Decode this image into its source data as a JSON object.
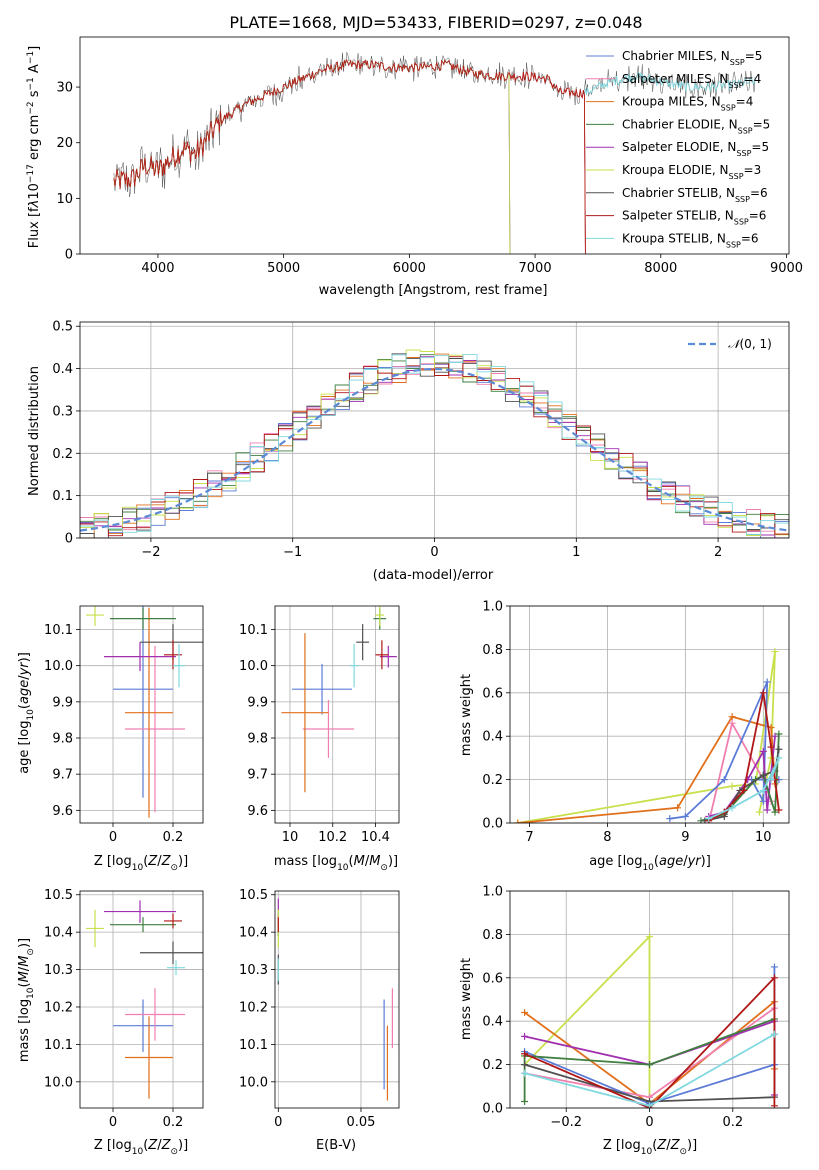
{
  "figure_title": "PLATE=1668, MJD=53433, FIBERID=0297, z=0.048",
  "chart_data": [
    {
      "id": "spectrum",
      "type": "line",
      "xlabel": "wavelength [Angstrom, rest frame]",
      "ylabel": "Flux [f_λ10^-17 erg cm^-2 s^-1 A^-1]",
      "xlim": [
        3380,
        9020
      ],
      "ylim": [
        0,
        39
      ],
      "xticks": [
        4000,
        5000,
        6000,
        7000,
        8000,
        9000
      ],
      "yticks": [
        0,
        10,
        20,
        30
      ],
      "grid": false,
      "legend": "top-right",
      "continuum": [
        [
          3650,
          13
        ],
        [
          3800,
          13.5
        ],
        [
          3900,
          16
        ],
        [
          4000,
          15
        ],
        [
          4100,
          17
        ],
        [
          4200,
          19
        ],
        [
          4300,
          18
        ],
        [
          4400,
          21
        ],
        [
          4500,
          24
        ],
        [
          4700,
          27
        ],
        [
          4900,
          29
        ],
        [
          5100,
          31
        ],
        [
          5300,
          33
        ],
        [
          5500,
          34
        ],
        [
          5700,
          34
        ],
        [
          5900,
          33.5
        ],
        [
          6100,
          33.5
        ],
        [
          6300,
          34
        ],
        [
          6500,
          32.5
        ],
        [
          6700,
          32
        ],
        [
          6900,
          32
        ],
        [
          7100,
          31.5
        ],
        [
          7200,
          29
        ],
        [
          7400,
          29
        ],
        [
          7600,
          31
        ],
        [
          7800,
          32
        ],
        [
          8000,
          31
        ],
        [
          8200,
          30
        ],
        [
          8400,
          30
        ],
        [
          8600,
          30.5
        ],
        [
          8750,
          31
        ]
      ],
      "series": [
        {
          "name": "Chabrier MILES, N_SSP=5",
          "color": "#5b7bd6",
          "x_end": 7400
        },
        {
          "name": "Salpeter MILES, N_SSP=4",
          "color": "#f07fb0",
          "x_end": 7400
        },
        {
          "name": "Kroupa MILES, N_SSP=4",
          "color": "#e0701c",
          "x_end": 7400
        },
        {
          "name": "Chabrier ELODIE, N_SSP=5",
          "color": "#3f7f3f",
          "x_end": 6800
        },
        {
          "name": "Salpeter ELODIE, N_SSP=5",
          "color": "#a030b0",
          "x_end": 6800
        },
        {
          "name": "Kroupa ELODIE, N_SSP=3",
          "color": "#c8e04c",
          "x_end": 6800
        },
        {
          "name": "Chabrier STELIB, N_SSP=6",
          "color": "#505050",
          "x_end": 8750
        },
        {
          "name": "Salpeter STELIB, N_SSP=6",
          "color": "#b01818",
          "x_end": 7400
        },
        {
          "name": "Kroupa STELIB, N_SSP=6",
          "color": "#80d8e0",
          "x_end": 8750
        }
      ]
    },
    {
      "id": "residuals",
      "type": "bar",
      "xlabel": "(data-model)/error",
      "ylabel": "Normed distribution",
      "xlim": [
        -2.5,
        2.5
      ],
      "ylim": [
        0,
        0.51
      ],
      "xticks": [
        -2,
        -1,
        0,
        1,
        2
      ],
      "yticks": [
        0.0,
        0.1,
        0.2,
        0.3,
        0.4,
        0.5
      ],
      "grid": true,
      "legend": "top-right",
      "bin_width": 0.1,
      "reference_curve": {
        "name": "N(0,1)",
        "color": "#5b8ad6",
        "mean": 0,
        "sigma": 1
      }
    },
    {
      "id": "age_vs_Z",
      "type": "scatter",
      "xlabel": "Z [log10(Z/Z_sun)]",
      "ylabel": "age [log10(age/yr)]",
      "xlim": [
        -0.11,
        0.3
      ],
      "ylim": [
        9.565,
        10.165
      ],
      "xticks": [
        0.0,
        0.2
      ],
      "yticks": [
        9.6,
        9.7,
        9.8,
        9.9,
        10.0,
        10.1
      ],
      "grid": true,
      "points": [
        {
          "x": 0.1,
          "y": 9.935,
          "xerr": 0.1,
          "yerr": 0.3,
          "color": "#5b7bd6"
        },
        {
          "x": 0.14,
          "y": 9.825,
          "xerr": 0.1,
          "yerr": 0.23,
          "color": "#f07fb0"
        },
        {
          "x": 0.12,
          "y": 9.87,
          "xerr": 0.08,
          "yerr": 0.29,
          "color": "#e0701c"
        },
        {
          "x": 0.1,
          "y": 10.13,
          "xerr": 0.11,
          "yerr": 0.03,
          "color": "#3f7f3f"
        },
        {
          "x": 0.09,
          "y": 10.025,
          "xerr": 0.12,
          "yerr": 0.04,
          "color": "#a030b0"
        },
        {
          "x": -0.06,
          "y": 10.14,
          "xerr": 0.03,
          "yerr": 0.03,
          "color": "#c8e04c"
        },
        {
          "x": 0.2,
          "y": 10.065,
          "xerr": 0.11,
          "yerr": 0.05,
          "color": "#505050"
        },
        {
          "x": 0.2,
          "y": 10.03,
          "xerr": 0.03,
          "yerr": 0.04,
          "color": "#b01818"
        },
        {
          "x": 0.22,
          "y": 10.0,
          "xerr": 0.02,
          "yerr": 0.06,
          "color": "#80d8e0"
        }
      ]
    },
    {
      "id": "age_vs_mass",
      "type": "scatter",
      "xlabel": "mass [log10(M/M_sun)]",
      "ylabel": "",
      "xlim": [
        9.93,
        10.51
      ],
      "ylim": [
        9.565,
        10.165
      ],
      "xticks": [
        10.0,
        10.2,
        10.4
      ],
      "yticks": [
        9.6,
        9.7,
        9.8,
        9.9,
        10.0,
        10.1
      ],
      "grid": true,
      "points": [
        {
          "x": 10.15,
          "y": 9.935,
          "xerr": 0.14,
          "yerr": 0.07,
          "color": "#5b7bd6"
        },
        {
          "x": 10.18,
          "y": 9.825,
          "xerr": 0.12,
          "yerr": 0.08,
          "color": "#f07fb0"
        },
        {
          "x": 10.07,
          "y": 9.87,
          "xerr": 0.11,
          "yerr": 0.22,
          "color": "#e0701c"
        },
        {
          "x": 10.42,
          "y": 10.13,
          "xerr": 0.03,
          "yerr": 0.03,
          "color": "#3f7f3f"
        },
        {
          "x": 10.46,
          "y": 10.025,
          "xerr": 0.04,
          "yerr": 0.03,
          "color": "#a030b0"
        },
        {
          "x": 10.42,
          "y": 10.14,
          "xerr": 0.02,
          "yerr": 0.03,
          "color": "#c8e04c"
        },
        {
          "x": 10.34,
          "y": 10.065,
          "xerr": 0.03,
          "yerr": 0.05,
          "color": "#505050"
        },
        {
          "x": 10.43,
          "y": 10.03,
          "xerr": 0.03,
          "yerr": 0.04,
          "color": "#b01818"
        },
        {
          "x": 10.3,
          "y": 10.0,
          "xerr": 0.02,
          "yerr": 0.06,
          "color": "#80d8e0"
        }
      ]
    },
    {
      "id": "weight_vs_age",
      "type": "line",
      "xlabel": "age [log10(age/yr)]",
      "ylabel": "mass weight",
      "xlim": [
        6.75,
        10.33
      ],
      "ylim": [
        0,
        1.0
      ],
      "xticks": [
        7,
        8,
        9,
        10
      ],
      "yticks": [
        0.0,
        0.2,
        0.4,
        0.6,
        0.8,
        1.0
      ],
      "grid": true,
      "series": [
        {
          "color": "#c8e04c",
          "x": [
            6.85,
            9.6,
            9.9,
            10.15,
            10.1,
            9.95
          ],
          "y": [
            0.0,
            0.17,
            0.18,
            0.79,
            0.3,
            0.05
          ]
        },
        {
          "color": "#e0701c",
          "x": [
            6.85,
            8.9,
            9.6,
            10.1,
            10.15
          ],
          "y": [
            0.0,
            0.07,
            0.49,
            0.44,
            0.18
          ]
        },
        {
          "color": "#f07fb0",
          "x": [
            9.3,
            9.6,
            10.0,
            10.1
          ],
          "y": [
            0.0,
            0.46,
            0.2,
            0.1
          ]
        },
        {
          "color": "#5b7bd6",
          "x": [
            8.8,
            9.0,
            9.5,
            10.05,
            10.0,
            9.85,
            10.2
          ],
          "y": [
            0.02,
            0.03,
            0.2,
            0.65,
            0.1,
            0.2,
            0.2
          ]
        },
        {
          "color": "#a030b0",
          "x": [
            9.3,
            9.5,
            9.8,
            10.0,
            10.05,
            10.15
          ],
          "y": [
            0.03,
            0.05,
            0.2,
            0.33,
            0.06,
            0.4
          ]
        },
        {
          "color": "#3f7f3f",
          "x": [
            9.2,
            9.5,
            9.9,
            10.0,
            10.15,
            10.2
          ],
          "y": [
            0.01,
            0.04,
            0.2,
            0.22,
            0.05,
            0.41
          ]
        },
        {
          "color": "#505050",
          "x": [
            9.25,
            9.5,
            9.7,
            10.0,
            10.15,
            10.2
          ],
          "y": [
            0.01,
            0.03,
            0.15,
            0.22,
            0.24,
            0.34
          ]
        },
        {
          "color": "#b01818",
          "x": [
            9.3,
            9.5,
            9.75,
            10.0,
            10.1,
            10.15,
            10.2
          ],
          "y": [
            0.01,
            0.05,
            0.15,
            0.6,
            0.35,
            0.2,
            0.06
          ]
        },
        {
          "color": "#80d8e0",
          "x": [
            9.3,
            9.6,
            10.0,
            10.2,
            10.1
          ],
          "y": [
            0.02,
            0.07,
            0.15,
            0.3,
            0.2
          ]
        }
      ]
    },
    {
      "id": "mass_vs_Z",
      "type": "scatter",
      "xlabel": "Z [log10(Z/Z_sun)]",
      "ylabel": "mass [log10(M/M_sun)]",
      "xlim": [
        -0.11,
        0.3
      ],
      "ylim": [
        9.93,
        10.51
      ],
      "xticks": [
        0.0,
        0.2
      ],
      "yticks": [
        10.0,
        10.1,
        10.2,
        10.3,
        10.4,
        10.5
      ],
      "grid": true,
      "points": [
        {
          "x": 0.1,
          "y": 10.15,
          "xerr": 0.1,
          "yerr": 0.07,
          "color": "#5b7bd6"
        },
        {
          "x": 0.14,
          "y": 10.18,
          "xerr": 0.1,
          "yerr": 0.07,
          "color": "#f07fb0"
        },
        {
          "x": 0.12,
          "y": 10.065,
          "xerr": 0.08,
          "yerr": 0.11,
          "color": "#e0701c"
        },
        {
          "x": 0.1,
          "y": 10.42,
          "xerr": 0.11,
          "yerr": 0.02,
          "color": "#3f7f3f"
        },
        {
          "x": 0.09,
          "y": 10.455,
          "xerr": 0.12,
          "yerr": 0.03,
          "color": "#a030b0"
        },
        {
          "x": -0.06,
          "y": 10.41,
          "xerr": 0.03,
          "yerr": 0.05,
          "color": "#c8e04c"
        },
        {
          "x": 0.2,
          "y": 10.345,
          "xerr": 0.11,
          "yerr": 0.03,
          "color": "#505050"
        },
        {
          "x": 0.2,
          "y": 10.43,
          "xerr": 0.03,
          "yerr": 0.02,
          "color": "#b01818"
        },
        {
          "x": 0.21,
          "y": 10.305,
          "xerr": 0.03,
          "yerr": 0.02,
          "color": "#80d8e0"
        }
      ]
    },
    {
      "id": "mass_vs_ebv",
      "type": "scatter",
      "xlabel": "E(B-V)",
      "ylabel": "",
      "xlim": [
        -0.002,
        0.073
      ],
      "ylim": [
        9.93,
        10.51
      ],
      "xticks": [
        0.0,
        0.05
      ],
      "yticks": [
        10.0,
        10.1,
        10.2,
        10.3,
        10.4,
        10.5
      ],
      "grid": true,
      "points": [
        {
          "x": 0.064,
          "y": 10.1,
          "xerr": 0,
          "yerr": 0.12,
          "color": "#5b7bd6"
        },
        {
          "x": 0.069,
          "y": 10.17,
          "xerr": 0,
          "yerr": 0.08,
          "color": "#f07fb0"
        },
        {
          "x": 0.066,
          "y": 10.05,
          "xerr": 0,
          "yerr": 0.1,
          "color": "#e0701c"
        },
        {
          "x": 0.0,
          "y": 10.42,
          "xerr": 0,
          "yerr": 0.03,
          "color": "#3f7f3f"
        },
        {
          "x": 0.0,
          "y": 10.45,
          "xerr": 0,
          "yerr": 0.04,
          "color": "#a030b0"
        },
        {
          "x": 0.0,
          "y": 10.41,
          "xerr": 0,
          "yerr": 0.05,
          "color": "#c8e04c"
        },
        {
          "x": 0.0,
          "y": 10.3,
          "xerr": 0,
          "yerr": 0.04,
          "color": "#505050"
        },
        {
          "x": 0.0,
          "y": 10.42,
          "xerr": 0,
          "yerr": 0.02,
          "color": "#b01818"
        },
        {
          "x": 0.0,
          "y": 10.3,
          "xerr": 0,
          "yerr": 0.03,
          "color": "#80d8e0"
        }
      ]
    },
    {
      "id": "weight_vs_Z",
      "type": "line",
      "xlabel": "Z [log10(Z/Z_sun)]",
      "ylabel": "mass weight",
      "xlim": [
        -0.335,
        0.335
      ],
      "ylim": [
        0,
        1.0
      ],
      "xticks": [
        -0.2,
        0.0,
        0.2
      ],
      "yticks": [
        0.0,
        0.2,
        0.4,
        0.6,
        0.8,
        1.0
      ],
      "grid": true,
      "series": [
        {
          "color": "#c8e04c",
          "x": [
            -0.3,
            0.0,
            0.0
          ],
          "y": [
            0.2,
            0.79,
            0.05
          ]
        },
        {
          "color": "#e0701c",
          "x": [
            -0.3,
            0.0,
            0.3,
            0.3
          ],
          "y": [
            0.44,
            0.02,
            0.49,
            0.18
          ]
        },
        {
          "color": "#f07fb0",
          "x": [
            -0.3,
            0.0,
            0.3
          ],
          "y": [
            0.16,
            0.05,
            0.46
          ]
        },
        {
          "color": "#5b7bd6",
          "x": [
            -0.3,
            0.0,
            0.3,
            0.3
          ],
          "y": [
            0.26,
            0.02,
            0.2,
            0.65
          ]
        },
        {
          "color": "#a030b0",
          "x": [
            -0.3,
            0.0,
            0.3,
            0.3
          ],
          "y": [
            0.33,
            0.2,
            0.4,
            0.06
          ]
        },
        {
          "color": "#3f7f3f",
          "x": [
            -0.3,
            -0.3,
            0.0,
            0.3
          ],
          "y": [
            0.03,
            0.24,
            0.2,
            0.41
          ]
        },
        {
          "color": "#505050",
          "x": [
            -0.3,
            0.0,
            0.3,
            0.3
          ],
          "y": [
            0.2,
            0.03,
            0.05,
            0.34
          ]
        },
        {
          "color": "#b01818",
          "x": [
            -0.3,
            0.0,
            0.3,
            0.3
          ],
          "y": [
            0.25,
            0.0,
            0.6,
            0.01
          ]
        },
        {
          "color": "#80d8e0",
          "x": [
            -0.3,
            0.0,
            0.3
          ],
          "y": [
            0.16,
            0.01,
            0.34
          ]
        }
      ]
    }
  ]
}
